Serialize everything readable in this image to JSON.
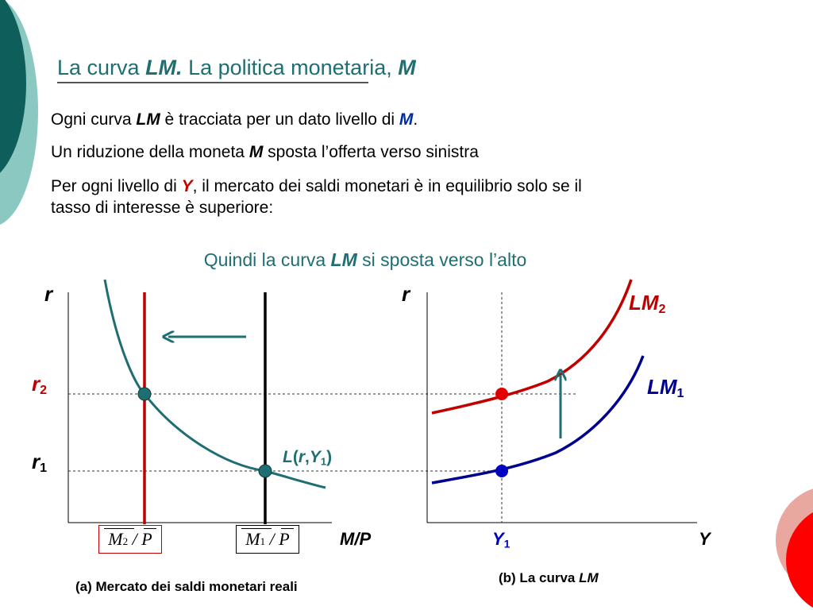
{
  "slide": {
    "title_pre": "La curva ",
    "title_em": "LM.",
    "title_post": " La politica monetaria, ",
    "title_m": "M"
  },
  "bullets": [
    {
      "pre": "Ogni curva ",
      "em": "LM",
      "mid": " è tracciata per un dato livello di ",
      "em2": "M",
      "post": "."
    },
    {
      "pre": "Un riduzione della moneta ",
      "em": "M",
      "post": " sposta l’offerta verso sinistra"
    },
    {
      "pre": "Per ogni livello di ",
      "em": "Y",
      "post": ", il mercato dei saldi monetari è in equilibrio solo se il",
      "line2": "tasso di interesse è superiore:"
    }
  ],
  "conclusion": {
    "pre": "Quindi la curva ",
    "em": "LM",
    "post": " si sposta verso l’alto"
  },
  "panel_a": {
    "y_axis": "r",
    "x_axis": "M/P",
    "r2": {
      "main": "r",
      "sub": "2"
    },
    "r1": {
      "main": "r",
      "sub": "1"
    },
    "demand_label": {
      "L": "L",
      "open": "(",
      "r": "r",
      "comma": ",",
      "Y": "Y",
      "sub": "1",
      "close": ")"
    },
    "supply2": {
      "M": "M",
      "sub": "2",
      "slash": "/",
      "P": "P"
    },
    "supply1": {
      "M": "M",
      "sub": "1",
      "slash": "/",
      "P": "P"
    },
    "caption": "(a) Mercato dei saldi monetari reali"
  },
  "panel_b": {
    "y_axis": "r",
    "x_axis": "Y",
    "y1": {
      "main": "Y",
      "sub": "1"
    },
    "lm2": {
      "main": "LM",
      "sub": "2"
    },
    "lm1": {
      "main": "LM",
      "sub": "1"
    },
    "caption_pre": "(b) La curva ",
    "caption_em": "LM"
  },
  "colors": {
    "teal": "#1f6e72",
    "red": "#c00000",
    "navy": "#000090",
    "blue_text": "#002aa8"
  }
}
